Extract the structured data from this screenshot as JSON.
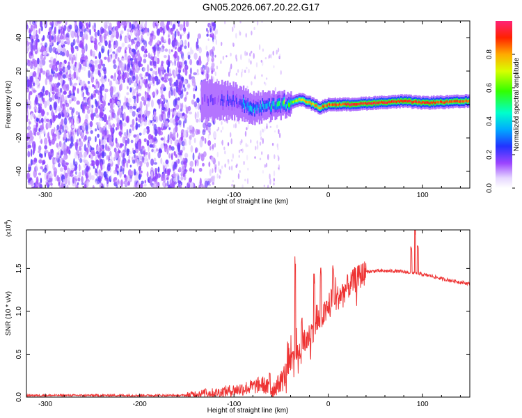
{
  "title": "GN05.2026.067.20.22.G17",
  "chart_data": [
    {
      "type": "heatmap",
      "xlabel": "Height of straight line (km)",
      "ylabel": "Frequency (Hz)",
      "xlim": [
        -320,
        150
      ],
      "ylim": [
        -50,
        50
      ],
      "xticks": [
        -300,
        -200,
        -100,
        0,
        100
      ],
      "xtick_labels": [
        "-300",
        "-200",
        "-100",
        "0",
        "100"
      ],
      "yticks": [
        -40,
        -20,
        0,
        20,
        40
      ],
      "ytick_labels": [
        "-40",
        "-20",
        "0",
        "20",
        "40"
      ],
      "colorbar": {
        "label": "Normalized spectral amplitude",
        "range": [
          0,
          1
        ],
        "ticks": [
          0.0,
          0.2,
          0.4,
          0.6,
          0.8
        ],
        "tick_labels": [
          "0.0",
          "0.2",
          "0.4",
          "0.6",
          "0.8"
        ]
      },
      "description_points": {
        "noise_region_km": [
          -320,
          -130
        ],
        "signal_center_freq_hz": [
          [
            -120,
            3
          ],
          [
            -100,
            2
          ],
          [
            -80,
            -2
          ],
          [
            -60,
            -1
          ],
          [
            -45,
            0
          ],
          [
            -30,
            3
          ],
          [
            -20,
            1
          ],
          [
            -10,
            -2
          ],
          [
            0,
            0
          ],
          [
            20,
            0
          ],
          [
            50,
            1
          ],
          [
            80,
            2
          ],
          [
            100,
            1
          ],
          [
            150,
            2
          ]
        ],
        "signal_amplitude": [
          [
            -120,
            0.15
          ],
          [
            -100,
            0.25
          ],
          [
            -80,
            0.35
          ],
          [
            -60,
            0.4
          ],
          [
            -45,
            0.55
          ],
          [
            -30,
            0.75
          ],
          [
            -20,
            0.8
          ],
          [
            -10,
            0.85
          ],
          [
            0,
            0.9
          ],
          [
            20,
            0.92
          ],
          [
            50,
            0.95
          ],
          [
            80,
            0.95
          ],
          [
            100,
            0.9
          ],
          [
            150,
            0.9
          ]
        ]
      }
    },
    {
      "type": "line",
      "xlabel": "Height of straight line (km)",
      "ylabel": "SNR (10 * v/v)",
      "scale_label": "(x10",
      "scale_exp": "4",
      "scale_close": ")",
      "xlim": [
        -320,
        150
      ],
      "ylim": [
        0,
        1.95
      ],
      "xticks": [
        -300,
        -200,
        -100,
        0,
        100
      ],
      "xtick_labels": [
        "-300",
        "-200",
        "-100",
        "0",
        "100"
      ],
      "yticks": [
        0.0,
        0.5,
        1.0,
        1.5
      ],
      "ytick_labels": [
        "0.0",
        "0.5",
        "1.0",
        "1.5"
      ],
      "series": [
        {
          "name": "SNR",
          "color": "#ee3333",
          "x": [
            -320,
            -150,
            -140,
            -120,
            -100,
            -80,
            -70,
            -60,
            -50,
            -40,
            -30,
            -20,
            -10,
            0,
            10,
            20,
            30,
            40,
            50,
            60,
            70,
            80,
            90,
            100,
            110,
            120,
            130,
            150
          ],
          "y": [
            0.02,
            0.02,
            0.04,
            0.05,
            0.08,
            0.12,
            0.15,
            0.08,
            0.18,
            0.38,
            0.55,
            0.72,
            0.9,
            1.02,
            1.16,
            1.28,
            1.38,
            1.46,
            1.47,
            1.47,
            1.47,
            1.46,
            1.45,
            1.43,
            1.41,
            1.38,
            1.36,
            1.32
          ]
        }
      ]
    }
  ]
}
